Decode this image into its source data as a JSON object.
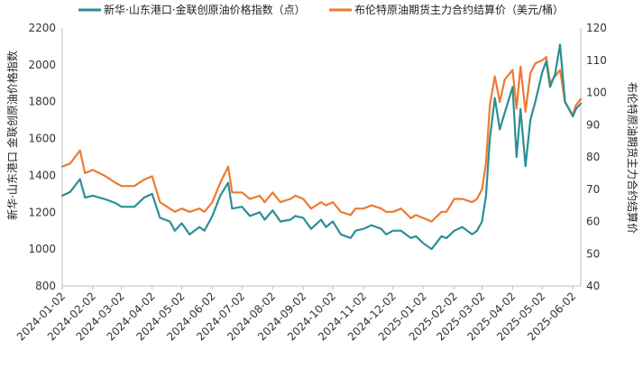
{
  "chart_data": {
    "type": "line",
    "legend_position": "top",
    "grid": false,
    "colors": {
      "series1": "#2a8f96",
      "series2": "#ee7a30",
      "axis": "#bfbfbf"
    },
    "x_ticks": [
      "2024-01-02",
      "2024-02-02",
      "2024-03-02",
      "2024-04-02",
      "2024-05-02",
      "2024-06-02",
      "2024-07-02",
      "2024-08-02",
      "2024-09-02",
      "2024-10-02",
      "2024-11-02",
      "2024-12-02",
      "2025-01-02",
      "2025-02-02",
      "2025-03-02",
      "2025-04-02",
      "2025-05-02",
      "2025-06-02"
    ],
    "y_left": {
      "label": "新华·山东港口 金联创原油价格指数",
      "ylim": [
        800,
        2200
      ],
      "ticks": [
        "800",
        "1000",
        "1200",
        "1400",
        "1600",
        "1800",
        "2000",
        "2200"
      ]
    },
    "y_right": {
      "label": "布伦特原油期货主力合约结算价",
      "ylim": [
        40,
        120
      ],
      "ticks": [
        "40",
        "50",
        "60",
        "70",
        "80",
        "90",
        "100",
        "110",
        "120"
      ]
    },
    "series": [
      {
        "name": "新华·山东港口·金联创原油价格指数（点）",
        "axis": "left",
        "x": [
          "2024-01-02",
          "2024-01-10",
          "2024-01-20",
          "2024-01-25",
          "2024-02-02",
          "2024-02-15",
          "2024-02-25",
          "2024-03-02",
          "2024-03-15",
          "2024-03-25",
          "2024-04-02",
          "2024-04-10",
          "2024-04-20",
          "2024-04-25",
          "2024-05-02",
          "2024-05-10",
          "2024-05-20",
          "2024-05-25",
          "2024-06-02",
          "2024-06-10",
          "2024-06-18",
          "2024-06-22",
          "2024-07-02",
          "2024-07-10",
          "2024-07-20",
          "2024-07-25",
          "2024-08-02",
          "2024-08-10",
          "2024-08-20",
          "2024-08-25",
          "2024-09-02",
          "2024-09-10",
          "2024-09-20",
          "2024-09-25",
          "2024-10-02",
          "2024-10-10",
          "2024-10-20",
          "2024-10-25",
          "2024-11-02",
          "2024-11-10",
          "2024-11-20",
          "2024-11-25",
          "2024-12-02",
          "2024-12-10",
          "2024-12-20",
          "2024-12-25",
          "2025-01-02",
          "2025-01-10",
          "2025-01-20",
          "2025-01-25",
          "2025-02-02",
          "2025-02-10",
          "2025-02-20",
          "2025-02-25",
          "2025-03-02",
          "2025-03-06",
          "2025-03-10",
          "2025-03-15",
          "2025-03-20",
          "2025-03-25",
          "2025-04-02",
          "2025-04-06",
          "2025-04-10",
          "2025-04-15",
          "2025-04-20",
          "2025-04-25",
          "2025-05-02",
          "2025-05-06",
          "2025-05-10",
          "2025-05-15",
          "2025-05-20",
          "2025-05-25",
          "2025-06-02",
          "2025-06-05",
          "2025-06-10"
        ],
        "values": [
          1290,
          1310,
          1380,
          1280,
          1290,
          1270,
          1250,
          1230,
          1230,
          1280,
          1300,
          1170,
          1150,
          1100,
          1140,
          1080,
          1120,
          1100,
          1180,
          1290,
          1360,
          1220,
          1230,
          1180,
          1200,
          1160,
          1210,
          1150,
          1160,
          1180,
          1170,
          1110,
          1160,
          1120,
          1150,
          1080,
          1060,
          1100,
          1110,
          1130,
          1110,
          1080,
          1100,
          1100,
          1060,
          1070,
          1030,
          1000,
          1070,
          1060,
          1100,
          1120,
          1080,
          1100,
          1150,
          1290,
          1600,
          1820,
          1650,
          1740,
          1880,
          1500,
          1760,
          1450,
          1700,
          1800,
          1960,
          2020,
          1880,
          1950,
          2110,
          1800,
          1720,
          1760,
          1790
        ]
      },
      {
        "name": "布伦特原油期货主力合约结算价（美元/桶）",
        "axis": "right",
        "x": [
          "2024-01-02",
          "2024-01-10",
          "2024-01-20",
          "2024-01-25",
          "2024-02-02",
          "2024-02-15",
          "2024-02-25",
          "2024-03-02",
          "2024-03-15",
          "2024-03-25",
          "2024-04-02",
          "2024-04-10",
          "2024-04-20",
          "2024-04-25",
          "2024-05-02",
          "2024-05-10",
          "2024-05-20",
          "2024-05-25",
          "2024-06-02",
          "2024-06-10",
          "2024-06-18",
          "2024-06-22",
          "2024-07-02",
          "2024-07-10",
          "2024-07-20",
          "2024-07-25",
          "2024-08-02",
          "2024-08-10",
          "2024-08-20",
          "2024-08-25",
          "2024-09-02",
          "2024-09-10",
          "2024-09-20",
          "2024-09-25",
          "2024-10-02",
          "2024-10-10",
          "2024-10-20",
          "2024-10-25",
          "2024-11-02",
          "2024-11-10",
          "2024-11-20",
          "2024-11-25",
          "2024-12-02",
          "2024-12-10",
          "2024-12-20",
          "2024-12-25",
          "2025-01-02",
          "2025-01-10",
          "2025-01-20",
          "2025-01-25",
          "2025-02-02",
          "2025-02-10",
          "2025-02-20",
          "2025-02-25",
          "2025-03-02",
          "2025-03-06",
          "2025-03-10",
          "2025-03-15",
          "2025-03-20",
          "2025-03-25",
          "2025-04-02",
          "2025-04-06",
          "2025-04-10",
          "2025-04-15",
          "2025-04-20",
          "2025-04-25",
          "2025-05-02",
          "2025-05-06",
          "2025-05-10",
          "2025-05-15",
          "2025-05-20",
          "2025-05-25",
          "2025-06-02",
          "2025-06-05",
          "2025-06-10"
        ],
        "values": [
          77,
          78,
          82,
          75,
          76,
          74,
          72,
          71,
          71,
          73,
          74,
          66,
          64,
          63,
          64,
          63,
          64,
          63,
          66,
          72,
          77,
          69,
          69,
          67,
          68,
          66,
          69,
          66,
          67,
          68,
          67,
          64,
          66,
          65,
          66,
          63,
          62,
          64,
          64,
          65,
          64,
          63,
          63,
          64,
          61,
          62,
          61,
          60,
          63,
          63,
          67,
          67,
          66,
          67,
          70,
          78,
          96,
          105,
          97,
          104,
          107,
          95,
          108,
          94,
          106,
          109,
          110,
          111,
          103,
          105,
          107,
          97,
          93,
          96,
          98
        ]
      }
    ]
  }
}
